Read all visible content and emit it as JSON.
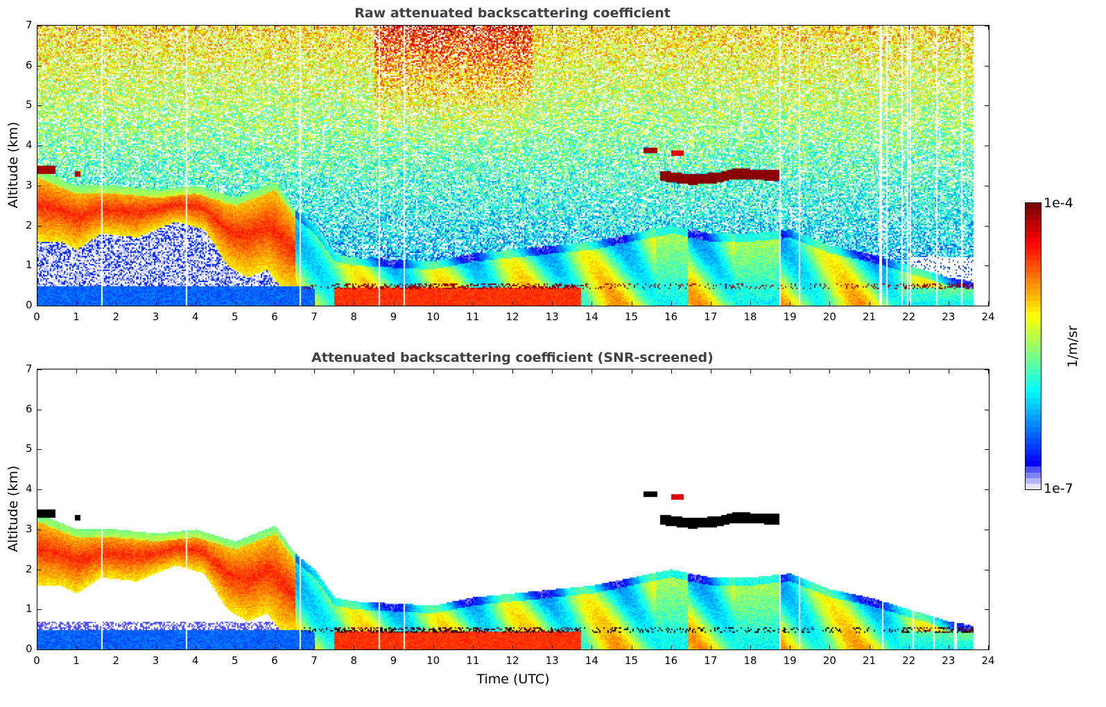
{
  "chart_data": [
    {
      "type": "heatmap",
      "title": "Raw attenuated backscattering coefficient",
      "xlabel": "",
      "ylabel": "Altitude (km)",
      "xlim": [
        0,
        24
      ],
      "ylim": [
        0,
        7
      ],
      "xticks": [
        "0",
        "1",
        "2",
        "3",
        "4",
        "5",
        "6",
        "7",
        "8",
        "9",
        "10",
        "11",
        "12",
        "13",
        "14",
        "15",
        "16",
        "17",
        "18",
        "19",
        "20",
        "21",
        "22",
        "23",
        "24"
      ],
      "yticks": [
        "0",
        "1",
        "2",
        "3",
        "4",
        "5",
        "6",
        "7"
      ],
      "data_end_time": 23.6,
      "features": [
        {
          "name": "boundary layer aerosol",
          "time_range": [
            0,
            23.6
          ],
          "altitude_range_km": [
            0,
            3.4
          ]
        },
        {
          "name": "morning residual layer",
          "time_range": [
            0,
            5
          ],
          "altitude_range_km": [
            1.5,
            3.0
          ]
        },
        {
          "name": "mid-level cloud",
          "time_range": [
            15.7,
            18.7
          ],
          "altitude_range_km": [
            3.1,
            3.4
          ]
        },
        {
          "name": "cloud patches",
          "time_range": [
            15.3,
            16.3
          ],
          "altitude_range_km": [
            3.7,
            3.95
          ]
        },
        {
          "name": "early cloud",
          "time_range": [
            0,
            0.5
          ],
          "altitude_range_km": [
            3.3,
            3.5
          ]
        },
        {
          "name": "low cloud/fog base",
          "time_range": [
            6.6,
            23.6
          ],
          "altitude_range_km": [
            0.4,
            0.6
          ]
        }
      ]
    },
    {
      "type": "heatmap",
      "title": "Attenuated backscattering coefficient (SNR-screened)",
      "xlabel": "Time (UTC)",
      "ylabel": "Altitude (km)",
      "xlim": [
        0,
        24
      ],
      "ylim": [
        0,
        7
      ],
      "xticks": [
        "0",
        "1",
        "2",
        "3",
        "4",
        "5",
        "6",
        "7",
        "8",
        "9",
        "10",
        "11",
        "12",
        "13",
        "14",
        "15",
        "16",
        "17",
        "18",
        "19",
        "20",
        "21",
        "22",
        "23",
        "24"
      ],
      "yticks": [
        "0",
        "1",
        "2",
        "3",
        "4",
        "5",
        "6",
        "7"
      ],
      "data_end_time": 23.6
    }
  ],
  "colorbar": {
    "label": "1/m/sr",
    "max_label": "1e-4",
    "min_label": "1e-7",
    "scale": "log",
    "range": [
      1e-07,
      0.0001
    ],
    "colormap": "jet",
    "low_colors": [
      "#e6e6fa",
      "#b4b4ff",
      "#8282ff",
      "#5050ff"
    ]
  }
}
